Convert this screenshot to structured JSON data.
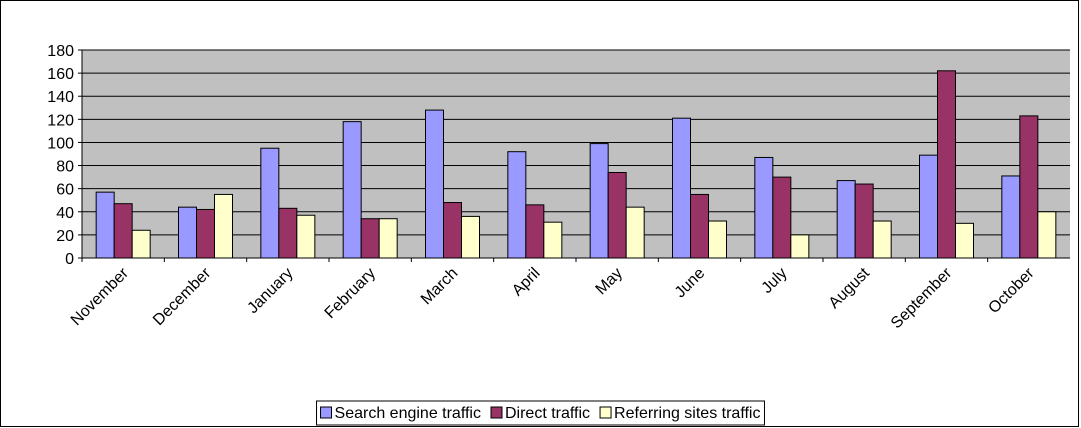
{
  "chart_data": {
    "type": "bar",
    "categories": [
      "November",
      "December",
      "January",
      "February",
      "March",
      "April",
      "May",
      "June",
      "July",
      "August",
      "September",
      "October"
    ],
    "series": [
      {
        "name": "Search engine traffic",
        "color": "#9999ff",
        "values": [
          57,
          44,
          95,
          118,
          128,
          92,
          99,
          121,
          87,
          67,
          89,
          71
        ]
      },
      {
        "name": "Direct traffic",
        "color": "#993366",
        "values": [
          47,
          42,
          43,
          34,
          48,
          46,
          74,
          55,
          70,
          64,
          162,
          123
        ]
      },
      {
        "name": "Referring sites traffic",
        "color": "#ffffcc",
        "values": [
          24,
          55,
          37,
          34,
          36,
          31,
          44,
          32,
          20,
          32,
          30,
          40
        ]
      }
    ],
    "ylim": [
      0,
      180
    ],
    "yticks": [
      0,
      20,
      40,
      60,
      80,
      100,
      120,
      140,
      160,
      180
    ],
    "grid": true,
    "legend": "bottom"
  }
}
